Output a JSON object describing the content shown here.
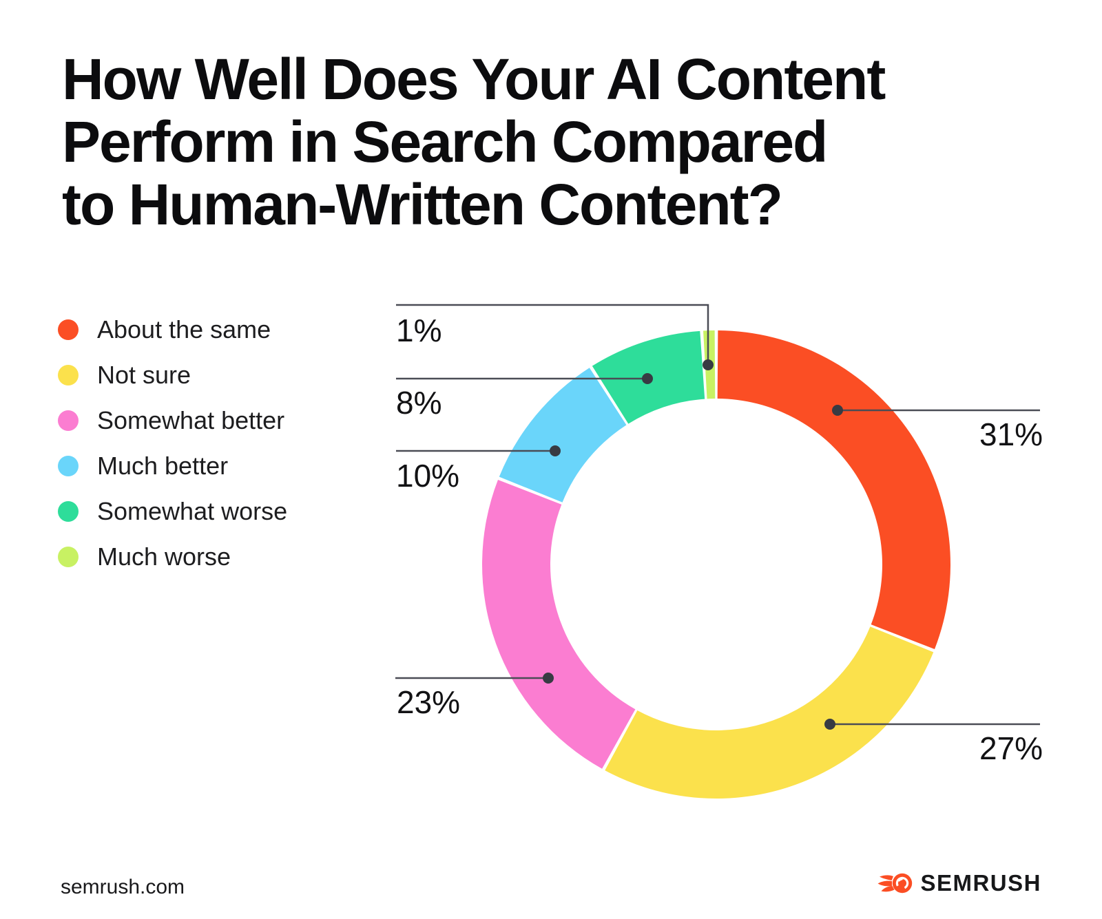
{
  "page": {
    "title_lines": [
      "How Well Does Your AI Content",
      "Perform in Search Compared",
      "to Human-Written Content?"
    ],
    "footer": {
      "site": "semrush.com",
      "brand": "SEMRUSH"
    }
  },
  "chart_data": {
    "type": "pie",
    "subtype": "donut",
    "title": "How Well Does Your AI Content Perform in Search Compared to Human-Written Content?",
    "categories": [
      "About the same",
      "Not sure",
      "Somewhat better",
      "Much better",
      "Somewhat worse",
      "Much worse"
    ],
    "values": [
      31,
      27,
      23,
      10,
      8,
      1
    ],
    "labels": [
      "31%",
      "27%",
      "23%",
      "10%",
      "8%",
      "1%"
    ],
    "colors": [
      "#FB4E24",
      "#FBE14C",
      "#FB7DD1",
      "#6AD5FA",
      "#2EDD9A",
      "#C8F163"
    ],
    "start_angle_deg": 0,
    "direction": "clockwise",
    "legend_position": "left",
    "leader_line_color": "#4A4C55",
    "leader_dot_color": "#383B43",
    "brand_color": "#FB4E24"
  }
}
